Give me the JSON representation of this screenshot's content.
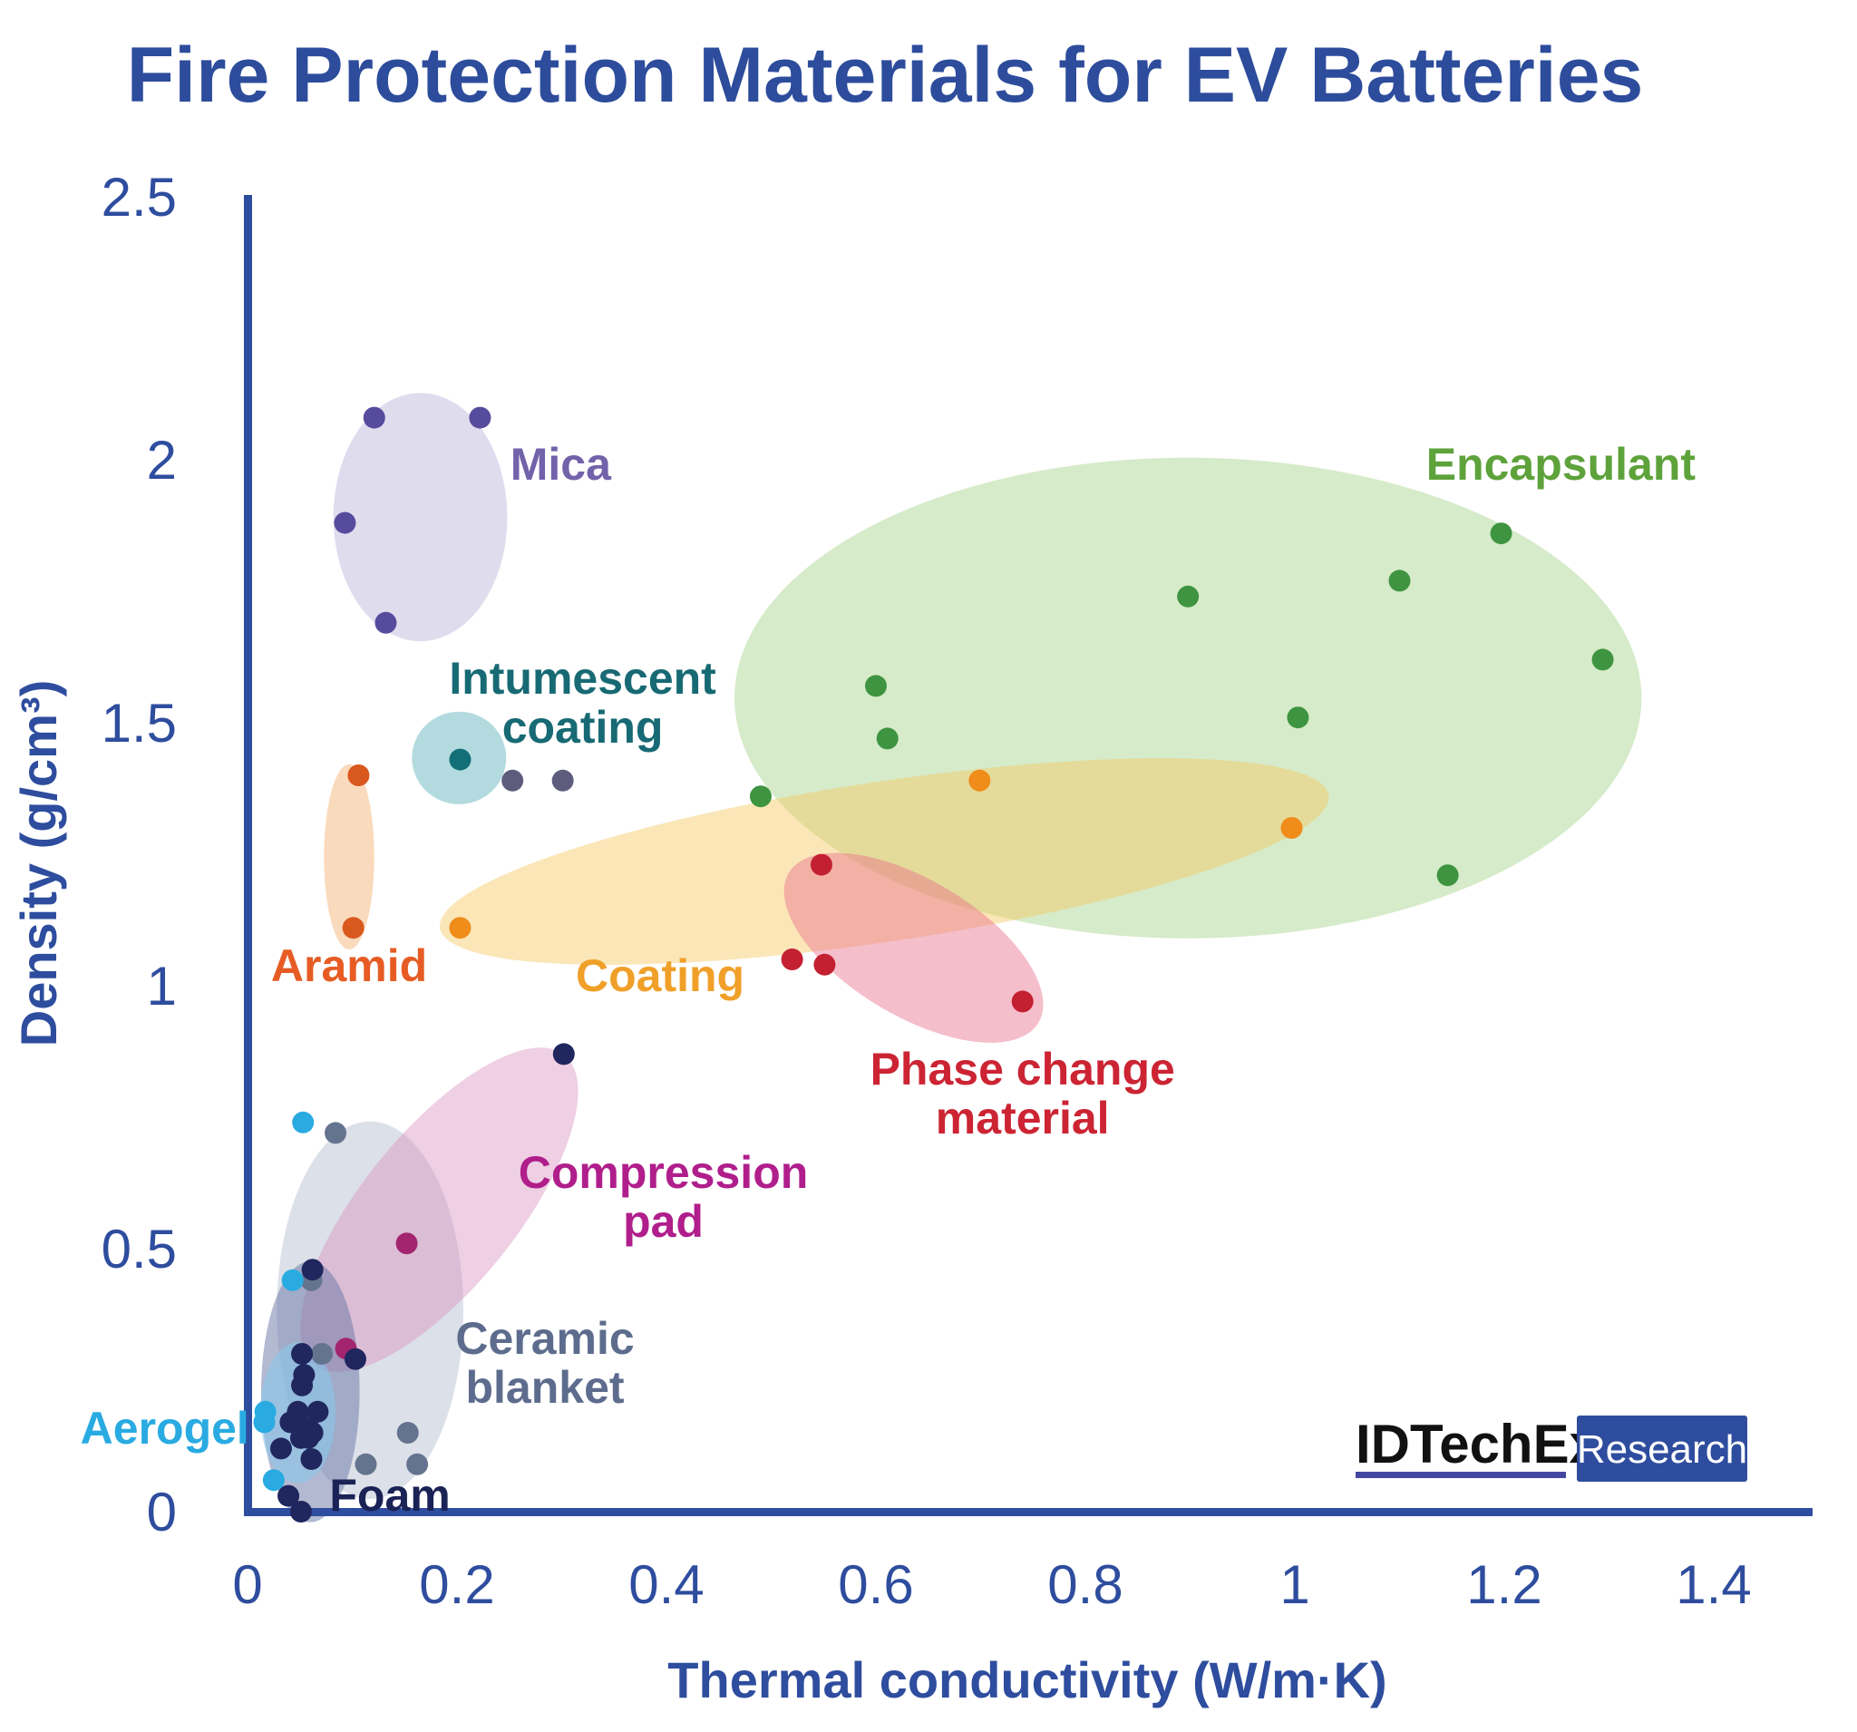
{
  "title": {
    "text": "Fire Protection Materials for EV Batteries",
    "color": "#2d4c9c"
  },
  "axes": {
    "color": "#2e4d9e",
    "tick_color": "#2e4d9e",
    "x": {
      "label": "Thermal conductivity (W/m·K)",
      "ticks": [
        {
          "v": 0,
          "label": "0"
        },
        {
          "v": 0.2,
          "label": "0.2"
        },
        {
          "v": 0.4,
          "label": "0.4"
        },
        {
          "v": 0.6,
          "label": "0.6"
        },
        {
          "v": 0.8,
          "label": "0.8"
        },
        {
          "v": 1,
          "label": "1"
        },
        {
          "v": 1.2,
          "label": "1.2"
        },
        {
          "v": 1.4,
          "label": "1.4"
        }
      ]
    },
    "y": {
      "label": "Density (g/cm³)",
      "ticks": [
        {
          "v": 0,
          "label": "0"
        },
        {
          "v": 0.5,
          "label": "0.5"
        },
        {
          "v": 1,
          "label": "1"
        },
        {
          "v": 1.5,
          "label": "1.5"
        },
        {
          "v": 2,
          "label": "2"
        },
        {
          "v": 2.5,
          "label": "2.5"
        }
      ]
    }
  },
  "logo": {
    "name": "IDTechEx",
    "name_color": "#111111",
    "underline_color": "#4347a2",
    "badge": "Research",
    "badge_bg": "#2e4d9e",
    "badge_text_color": "#ffffff"
  },
  "chart_data": {
    "type": "scatter",
    "title": "Fire Protection Materials for EV Batteries",
    "xlabel": "Thermal conductivity (W/m·K)",
    "ylabel": "Density (g/cm³)",
    "xlim": [
      0,
      1.49
    ],
    "ylim": [
      0,
      2.5
    ],
    "grid": false,
    "series": [
      {
        "id": "encapsulant",
        "name": "Encapsulant",
        "label": {
          "lines": [
            "Encapsulant"
          ],
          "x": 1.254,
          "y": 1.991,
          "color": "#5da23a"
        },
        "ellipse": {
          "cx": 0.898,
          "cy": 1.547,
          "rx": 0.433,
          "ry": 0.457,
          "rotate": 0,
          "fill": "rgba(148,202,114,0.38)"
        },
        "point_color": "#3e9441",
        "points": [
          [
            1.197,
            1.86
          ],
          [
            1.1,
            1.77
          ],
          [
            0.898,
            1.74
          ],
          [
            1.294,
            1.62
          ],
          [
            0.6,
            1.57
          ],
          [
            1.003,
            1.51
          ],
          [
            0.611,
            1.47
          ],
          [
            0.49,
            1.36
          ],
          [
            1.146,
            1.21
          ]
        ]
      },
      {
        "id": "coating",
        "name": "Coating",
        "label": {
          "lines": [
            "Coating"
          ],
          "x": 0.394,
          "y": 1.019,
          "color": "#f0a028"
        },
        "ellipse": {
          "cx": 0.608,
          "cy": 1.236,
          "rx": 0.429,
          "ry": 0.152,
          "rotate": -8.5,
          "fill": "rgba(246,200,98,0.45)"
        },
        "point_color": "#ef8c1a",
        "points": [
          [
            0.203,
            1.11
          ],
          [
            0.699,
            1.39
          ],
          [
            0.997,
            1.3
          ]
        ]
      },
      {
        "id": "phase-change-material",
        "name": "Phase change material",
        "label": {
          "lines": [
            "Phase change",
            "material"
          ],
          "x": 0.74,
          "y": 0.795,
          "color": "#cc2433"
        },
        "ellipse": {
          "cx": 0.636,
          "cy": 1.072,
          "rx": 0.139,
          "ry": 0.129,
          "rotate": 31,
          "fill": "rgba(232,110,140,0.45)"
        },
        "point_color": "#c32032",
        "points": [
          [
            0.548,
            1.23
          ],
          [
            0.52,
            1.05
          ],
          [
            0.551,
            1.04
          ],
          [
            0.74,
            0.97
          ]
        ]
      },
      {
        "id": "mica",
        "name": "Mica",
        "label": {
          "lines": [
            "Mica"
          ],
          "x": 0.299,
          "y": 1.991,
          "color": "#7262aa"
        },
        "ellipse": {
          "cx": 0.165,
          "cy": 1.891,
          "rx": 0.083,
          "ry": 0.236,
          "rotate": 0,
          "fill": "rgba(178,172,215,0.42)"
        },
        "point_color": "#574b9d",
        "points": [
          [
            0.121,
            2.08
          ],
          [
            0.222,
            2.08
          ],
          [
            0.093,
            1.88
          ],
          [
            0.132,
            1.69
          ]
        ]
      },
      {
        "id": "intumescent-coating",
        "name": "Intumescent coating",
        "label": {
          "lines": [
            "Intumescent",
            "coating"
          ],
          "x": 0.32,
          "y": 1.538,
          "color": "#176a74"
        },
        "ellipse": {
          "cx": 0.202,
          "cy": 1.433,
          "rx": 0.045,
          "ry": 0.088,
          "rotate": 0,
          "fill": "rgba(116,189,197,0.55)"
        },
        "point_color": "#136f77",
        "points": [
          [
            0.203,
            1.43
          ]
        ],
        "secondary_point_color": "#5d5c7c",
        "secondary_points": [
          [
            0.253,
            1.39
          ],
          [
            0.301,
            1.39
          ]
        ]
      },
      {
        "id": "aramid",
        "name": "Aramid",
        "label": {
          "lines": [
            "Aramid"
          ],
          "x": 0.097,
          "y": 1.038,
          "color": "#e65c24"
        },
        "ellipse": {
          "cx": 0.097,
          "cy": 1.245,
          "rx": 0.024,
          "ry": 0.176,
          "rotate": 0,
          "fill": "rgba(243,173,106,0.45)"
        },
        "point_color": "#d9581d",
        "points": [
          [
            0.106,
            1.4
          ],
          [
            0.101,
            1.11
          ]
        ]
      },
      {
        "id": "ceramic-blanket",
        "name": "Ceramic blanket",
        "label": {
          "lines": [
            "Ceramic",
            "blanket"
          ],
          "x": 0.284,
          "y": 0.283,
          "color": "#5d6c8d"
        },
        "ellipse": {
          "cx": 0.117,
          "cy": 0.383,
          "rx": 0.089,
          "ry": 0.359,
          "rotate": 0,
          "fill": "rgba(167,178,198,0.4)"
        },
        "point_color": "#64748e",
        "points": [
          [
            0.084,
            0.72
          ],
          [
            0.061,
            0.44
          ],
          [
            0.153,
            0.15
          ],
          [
            0.162,
            0.09
          ],
          [
            0.113,
            0.09
          ],
          [
            0.071,
            0.3
          ]
        ]
      },
      {
        "id": "compression-pad",
        "name": "Compression pad",
        "label": {
          "lines": [
            "Compression",
            "pad"
          ],
          "x": 0.397,
          "y": 0.598,
          "color": "#b01e8c"
        },
        "ellipse": {
          "cx": 0.183,
          "cy": 0.574,
          "rx": 0.19,
          "ry": 0.147,
          "rotate": -51,
          "fill": "rgba(217,148,194,0.45)"
        },
        "point_color": "#a3246f",
        "points": [
          [
            0.152,
            0.51
          ],
          [
            0.094,
            0.31
          ]
        ]
      },
      {
        "id": "foam",
        "name": "Foam",
        "label": {
          "lines": [
            "Foam"
          ],
          "x": 0.136,
          "y": 0.031,
          "color": "#1b2256"
        },
        "ellipse": {
          "cx": 0.06,
          "cy": 0.228,
          "rx": 0.047,
          "ry": 0.248,
          "rotate": 0,
          "fill": "rgba(101,115,164,0.5)"
        },
        "point_color": "#20265e",
        "points": [
          [
            0.302,
            0.87
          ],
          [
            0.062,
            0.46
          ],
          [
            0.103,
            0.29
          ],
          [
            0.052,
            0.3
          ],
          [
            0.054,
            0.26
          ],
          [
            0.052,
            0.24
          ],
          [
            0.048,
            0.19
          ],
          [
            0.067,
            0.19
          ],
          [
            0.041,
            0.17
          ],
          [
            0.058,
            0.16
          ],
          [
            0.062,
            0.15
          ],
          [
            0.051,
            0.14
          ],
          [
            0.058,
            0.14
          ],
          [
            0.032,
            0.12
          ],
          [
            0.061,
            0.1
          ],
          [
            0.039,
            0.03
          ],
          [
            0.051,
            0
          ]
        ]
      },
      {
        "id": "aerogel",
        "name": "Aerogel",
        "label": {
          "lines": [
            "Aerogel"
          ],
          "x": -0.079,
          "y": 0.159,
          "color": "#29abe2"
        },
        "ellipse": {
          "cx": 0.048,
          "cy": 0.188,
          "rx": 0.036,
          "ry": 0.134,
          "rotate": 0,
          "fill": "rgba(137,201,238,0.55)"
        },
        "point_color": "#29abe2",
        "points": [
          [
            0.053,
            0.74
          ],
          [
            0.043,
            0.44
          ],
          [
            0.017,
            0.19
          ],
          [
            0.016,
            0.17
          ],
          [
            0.025,
            0.06
          ]
        ]
      }
    ]
  }
}
